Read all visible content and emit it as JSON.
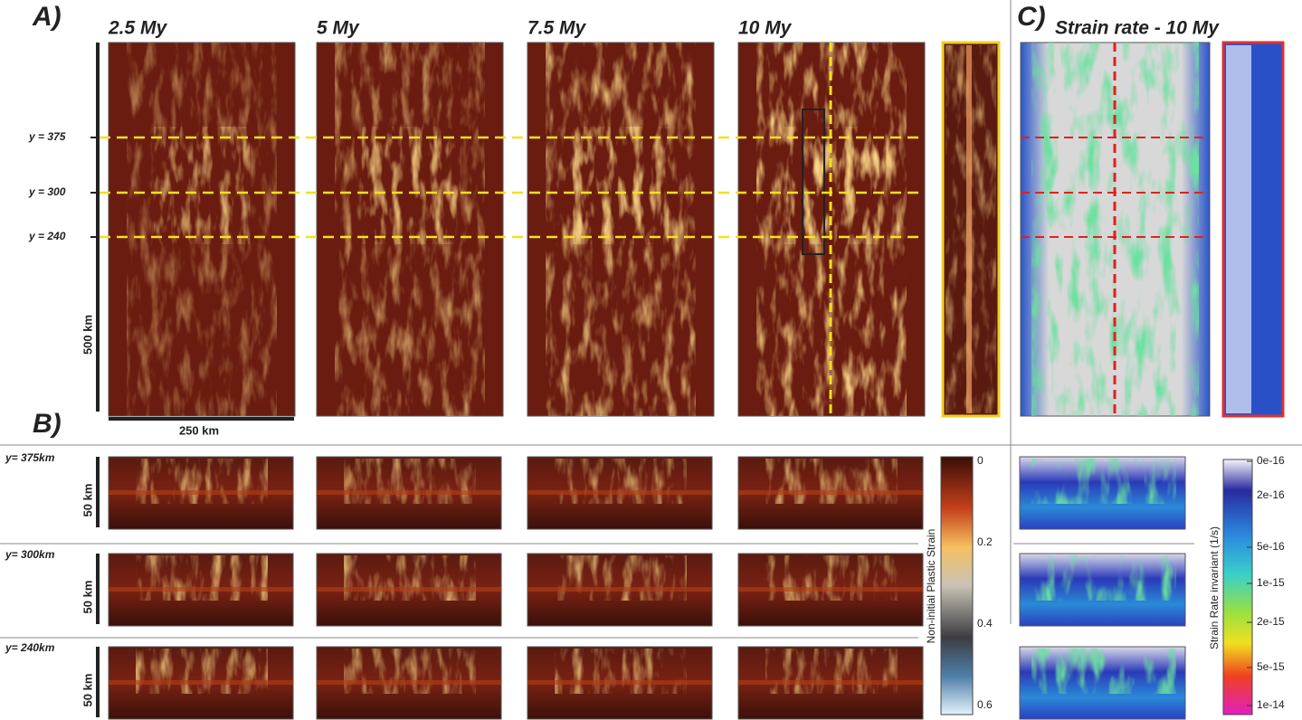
{
  "panel_a": {
    "label": "A)",
    "times": [
      "2.5 My",
      "5 My",
      "7.5 My",
      "10 My"
    ],
    "y_markers": [
      "y = 375",
      "y = 300",
      "y = 240"
    ],
    "vertical_scale": "500 km",
    "horizontal_scale": "250 km"
  },
  "panel_b": {
    "label": "B)",
    "rows": [
      {
        "label": "y= 375km",
        "scale": "50 km"
      },
      {
        "label": "y= 300km",
        "scale": "50 km"
      },
      {
        "label": "y= 240km",
        "scale": "50 km"
      }
    ]
  },
  "panel_c": {
    "label": "C)",
    "title": "Strain rate - 10 My"
  },
  "colorbar_strain": {
    "title": "Non-initial Plastic Strain",
    "ticks": [
      "0",
      "0.2",
      "0.4",
      "0.6"
    ]
  },
  "colorbar_rate": {
    "title": "Strain Rate invariant (1/s)",
    "ticks": [
      "0e-16",
      "2e-16",
      "5e-16",
      "1e-15",
      "2e-15",
      "5e-15",
      "1e-14"
    ]
  }
}
